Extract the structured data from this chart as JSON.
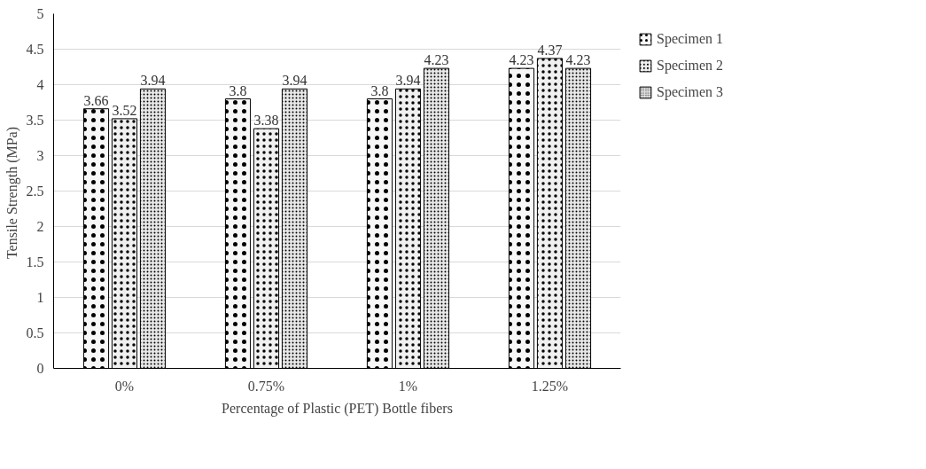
{
  "chart_data": {
    "type": "bar",
    "xlabel": "Percentage of Plastic (PET) Bottle fibers",
    "ylabel": "Tensile  Strength (MPa)",
    "categories": [
      "0%",
      "0.75%",
      "1%",
      "1.25%"
    ],
    "series": [
      {
        "name": "Specimen 1",
        "color": "#f7f7f7",
        "values": [
          3.66,
          3.8,
          3.8,
          4.23
        ]
      },
      {
        "name": "Specimen 2",
        "color": "#f0f0f0",
        "values": [
          3.52,
          3.38,
          3.94,
          4.37
        ]
      },
      {
        "name": "Specimen 3",
        "color": "#e8e8e8",
        "values": [
          3.94,
          3.94,
          4.23,
          4.23
        ]
      }
    ],
    "ylim": [
      0,
      5
    ],
    "yticks": [
      0,
      0.5,
      1,
      1.5,
      2,
      2.5,
      3,
      3.5,
      4,
      4.5,
      5
    ],
    "grid": "y",
    "legend": "right",
    "data_labels": true
  }
}
